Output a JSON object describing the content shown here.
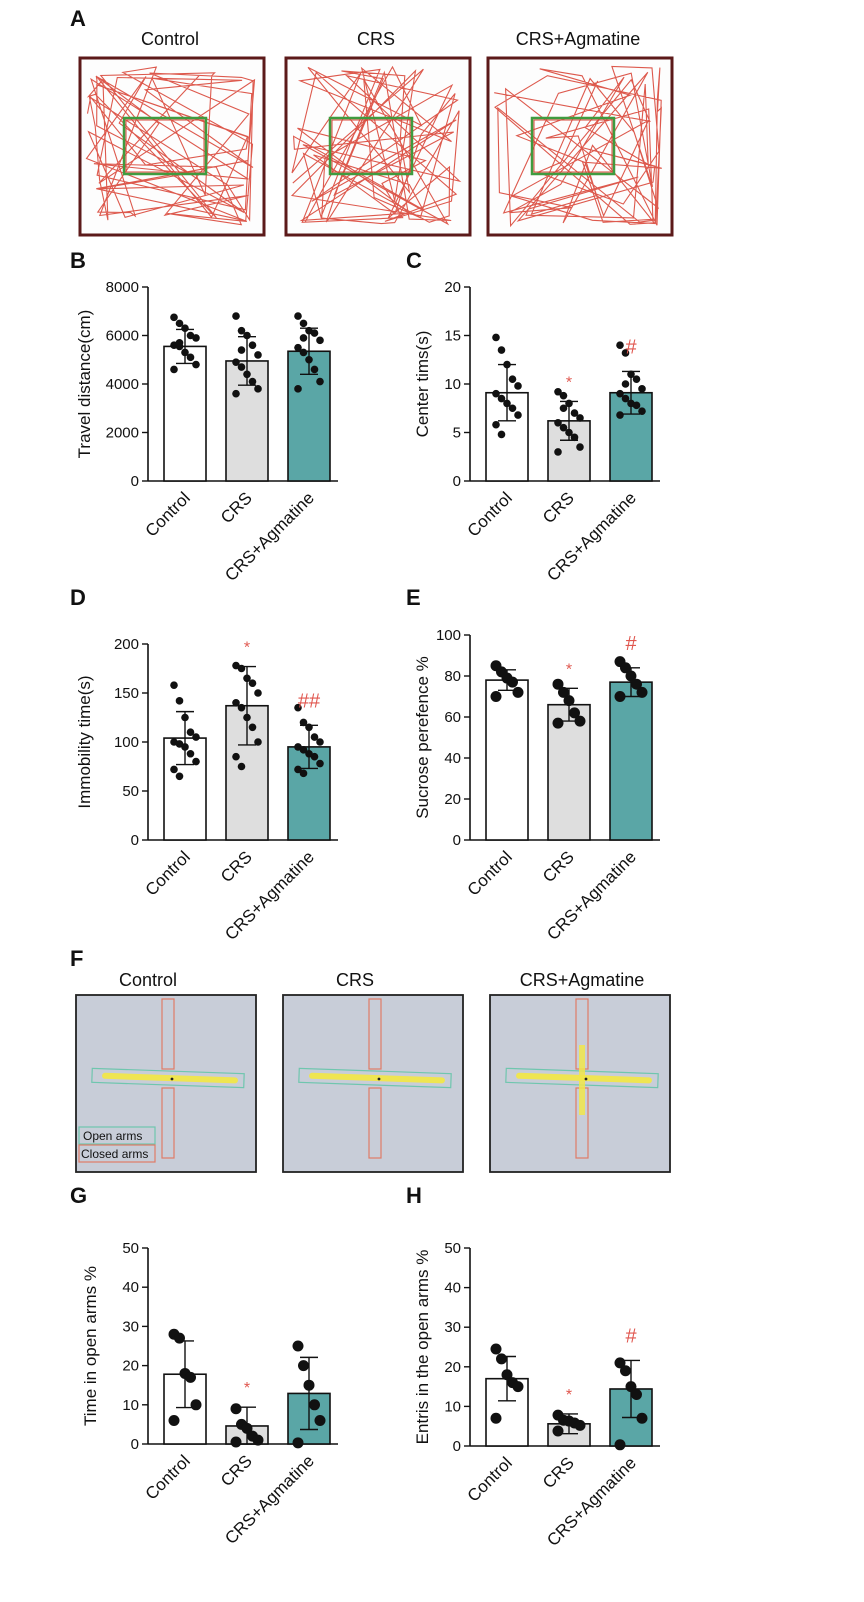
{
  "colors": {
    "control_fill": "#ffffff",
    "crs_fill": "#dedede",
    "agmatine_fill": "#5aa6a6",
    "axis": "#111111",
    "dot": "#111111",
    "significance": "#e0574f",
    "track": "#d9473a",
    "center_zone": "#3f9b3f",
    "arena_border": "#5c1a1a",
    "maze_bg": "#c8cdd8",
    "maze_track": "#f1e64a",
    "open_arm_outline": "#6fc6ae",
    "closed_arm_outline": "#e07b67"
  },
  "panel_A": {
    "letter": "A",
    "titles": [
      "Control",
      "CRS",
      "CRS+Agmatine"
    ]
  },
  "panel_F": {
    "letter": "F",
    "titles": [
      "Control",
      "CRS",
      "CRS+Agmatine"
    ],
    "legend": [
      "Open arms",
      "Closed arms"
    ]
  },
  "chart_data": [
    {
      "panel": "B",
      "type": "bar",
      "categories": [
        "Control",
        "CRS",
        "CRS+Agmatine"
      ],
      "values": [
        5550,
        4950,
        5350
      ],
      "errors": [
        700,
        1000,
        950
      ],
      "ylabel": "Travel distance(cm)",
      "ylim": [
        0,
        8000
      ],
      "yticks": [
        "0",
        "2000",
        "4000",
        "6000",
        "8000"
      ],
      "marks": [
        "",
        "",
        ""
      ],
      "points": [
        [
          6750,
          6500,
          6300,
          6000,
          5900,
          5600,
          5550,
          5300,
          5100,
          4800,
          4600,
          5700
        ],
        [
          6800,
          6200,
          6000,
          5600,
          5200,
          4900,
          4700,
          4400,
          4100,
          3800,
          3600,
          5400
        ],
        [
          6800,
          6500,
          6200,
          6100,
          5800,
          5500,
          5300,
          5000,
          4600,
          4100,
          3800,
          5900
        ]
      ]
    },
    {
      "panel": "C",
      "type": "bar",
      "categories": [
        "Control",
        "CRS",
        "CRS+Agmatine"
      ],
      "values": [
        9.1,
        6.2,
        9.1
      ],
      "errors": [
        2.9,
        2.0,
        2.2
      ],
      "ylabel": "Center tims(s)",
      "ylim": [
        0,
        20
      ],
      "yticks": [
        "0",
        "5",
        "10",
        "15",
        "20"
      ],
      "marks": [
        "",
        "*",
        "#"
      ],
      "points": [
        [
          14.8,
          13.5,
          12.0,
          10.5,
          9.8,
          9.0,
          8.5,
          8.0,
          7.5,
          6.8,
          5.8,
          4.8
        ],
        [
          9.2,
          8.8,
          8.0,
          7.0,
          6.5,
          6.0,
          5.5,
          5.0,
          4.5,
          3.5,
          3.0,
          7.5
        ],
        [
          14.0,
          13.2,
          11.0,
          10.5,
          9.5,
          9.0,
          8.5,
          8.0,
          7.8,
          7.2,
          6.8,
          10.0
        ]
      ]
    },
    {
      "panel": "D",
      "type": "bar",
      "categories": [
        "Control",
        "CRS",
        "CRS+Agmatine"
      ],
      "values": [
        104,
        137,
        95
      ],
      "errors": [
        27,
        40,
        22
      ],
      "ylabel": "Immobility time(s)",
      "ylim": [
        0,
        200
      ],
      "yticks": [
        "0",
        "50",
        "100",
        "150",
        "200"
      ],
      "marks": [
        "",
        "*",
        "##"
      ],
      "points": [
        [
          158,
          142,
          125,
          110,
          105,
          100,
          98,
          95,
          88,
          80,
          72,
          65
        ],
        [
          178,
          175,
          165,
          160,
          150,
          140,
          135,
          125,
          115,
          100,
          85,
          75
        ],
        [
          135,
          120,
          115,
          105,
          100,
          95,
          92,
          88,
          85,
          78,
          72,
          68
        ]
      ]
    },
    {
      "panel": "E",
      "type": "bar",
      "categories": [
        "Control",
        "CRS",
        "CRS+Agmatine"
      ],
      "values": [
        78,
        66,
        77
      ],
      "errors": [
        5,
        8,
        7
      ],
      "ylabel": "Sucrose perefence %",
      "ylim": [
        0,
        100
      ],
      "yticks": [
        "0",
        "20",
        "40",
        "60",
        "80",
        "100"
      ],
      "marks": [
        "",
        "*",
        "#"
      ],
      "points": [
        [
          85,
          82,
          79,
          77,
          72,
          70
        ],
        [
          76,
          72,
          68,
          62,
          58,
          57
        ],
        [
          87,
          84,
          80,
          76,
          72,
          70
        ]
      ]
    },
    {
      "panel": "G",
      "type": "bar",
      "categories": [
        "Control",
        "CRS",
        "CRS+Agmatine"
      ],
      "values": [
        17.8,
        4.6,
        12.9
      ],
      "errors": [
        8.5,
        4.8,
        9.2
      ],
      "ylabel": "Time in open arms %",
      "ylim": [
        0,
        50
      ],
      "yticks": [
        "0",
        "10",
        "20",
        "30",
        "40",
        "50"
      ],
      "marks": [
        "",
        "*",
        ""
      ],
      "points": [
        [
          28,
          27,
          18,
          17,
          10,
          6
        ],
        [
          9,
          5,
          4,
          2,
          1,
          0.5
        ],
        [
          25,
          20,
          15,
          10,
          6,
          0.3
        ]
      ]
    },
    {
      "panel": "H",
      "type": "bar",
      "categories": [
        "Control",
        "CRS",
        "CRS+Agmatine"
      ],
      "values": [
        17.0,
        5.6,
        14.4
      ],
      "errors": [
        5.6,
        2.5,
        7.2
      ],
      "ylabel": "Entris in the open arms %",
      "ylim": [
        0,
        50
      ],
      "yticks": [
        "0",
        "10",
        "20",
        "30",
        "40",
        "50"
      ],
      "marks": [
        "",
        "*",
        "#"
      ],
      "points": [
        [
          24.5,
          22,
          18,
          16,
          15,
          7
        ],
        [
          7.8,
          6.5,
          6.3,
          5.8,
          5.2,
          3.8
        ],
        [
          21,
          19,
          15,
          13,
          7,
          0.3
        ]
      ]
    }
  ]
}
